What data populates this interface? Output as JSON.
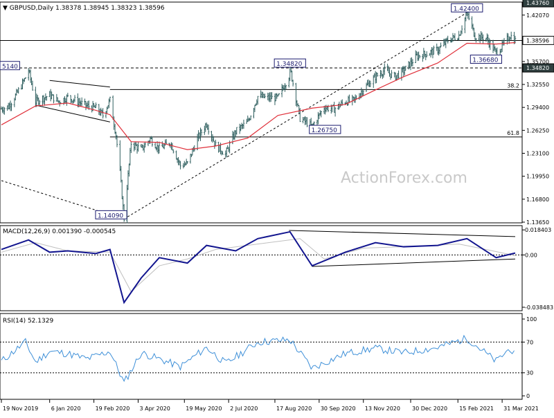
{
  "symbol_line": "GBPUSD,Daily  1.38378 1.38945 1.38323 1.38596",
  "watermark": "ActionForex.com",
  "colors": {
    "candles": "#2f5f5f",
    "ma": "#e0303a",
    "macd": "#12158f",
    "signal": "#bfbfbf",
    "rsi": "#3d8fd8",
    "guide": "#000000",
    "label_border": "#1a1a6e",
    "watermark": "#c9c9c9"
  },
  "chart_data": [
    {
      "type": "candlestick",
      "title": "GBPUSD,Daily",
      "ohlc_last": {
        "open": 1.38378,
        "high": 1.38945,
        "low": 1.38323,
        "close": 1.38596
      },
      "price_axis": {
        "ylim": [
          1.1365,
          1.4376
        ],
        "ticks": [
          "1.42070",
          "1.38596",
          "1.35700",
          "1.34820",
          "1.32550",
          "1.29400",
          "1.26250",
          "1.23100",
          "1.19950",
          "1.16800",
          "1.13650",
          "1.43760"
        ]
      },
      "date_axis": {
        "ticks": [
          "19 Nov 2019",
          "6 Jan 2020",
          "19 Feb 2020",
          "3 Apr 2020",
          "19 May 2020",
          "2 Jul 2020",
          "17 Aug 2020",
          "30 Sep 2020",
          "13 Nov 2020",
          "30 Dec 2020",
          "15 Feb 2021",
          "31 Mar 2021"
        ]
      },
      "series_close": [
        {
          "x": "2019-11-19",
          "y": 1.292
        },
        {
          "x": "2019-11-26",
          "y": 1.295
        },
        {
          "x": "2019-12-04",
          "y": 1.312
        },
        {
          "x": "2019-12-12",
          "y": 1.332
        },
        {
          "x": "2019-12-16",
          "y": 1.345
        },
        {
          "x": "2019-12-23",
          "y": 1.302
        },
        {
          "x": "2020-01-06",
          "y": 1.311
        },
        {
          "x": "2020-01-15",
          "y": 1.302
        },
        {
          "x": "2020-01-24",
          "y": 1.308
        },
        {
          "x": "2020-02-03",
          "y": 1.302
        },
        {
          "x": "2020-02-12",
          "y": 1.296
        },
        {
          "x": "2020-02-21",
          "y": 1.293
        },
        {
          "x": "2020-02-28",
          "y": 1.283
        },
        {
          "x": "2020-03-06",
          "y": 1.304
        },
        {
          "x": "2020-03-12",
          "y": 1.256
        },
        {
          "x": "2020-03-16",
          "y": 1.205
        },
        {
          "x": "2020-03-20",
          "y": 1.141
        },
        {
          "x": "2020-03-27",
          "y": 1.245
        },
        {
          "x": "2020-04-06",
          "y": 1.236
        },
        {
          "x": "2020-04-15",
          "y": 1.251
        },
        {
          "x": "2020-04-24",
          "y": 1.237
        },
        {
          "x": "2020-05-05",
          "y": 1.246
        },
        {
          "x": "2020-05-15",
          "y": 1.214
        },
        {
          "x": "2020-05-22",
          "y": 1.217
        },
        {
          "x": "2020-06-01",
          "y": 1.251
        },
        {
          "x": "2020-06-10",
          "y": 1.272
        },
        {
          "x": "2020-06-19",
          "y": 1.242
        },
        {
          "x": "2020-06-29",
          "y": 1.23
        },
        {
          "x": "2020-07-09",
          "y": 1.261
        },
        {
          "x": "2020-07-21",
          "y": 1.274
        },
        {
          "x": "2020-07-31",
          "y": 1.309
        },
        {
          "x": "2020-08-10",
          "y": 1.307
        },
        {
          "x": "2020-08-20",
          "y": 1.307
        },
        {
          "x": "2020-08-31",
          "y": 1.337
        },
        {
          "x": "2020-09-01",
          "y": 1.348
        },
        {
          "x": "2020-09-11",
          "y": 1.279
        },
        {
          "x": "2020-09-23",
          "y": 1.268
        },
        {
          "x": "2020-10-05",
          "y": 1.294
        },
        {
          "x": "2020-10-15",
          "y": 1.292
        },
        {
          "x": "2020-10-26",
          "y": 1.302
        },
        {
          "x": "2020-11-04",
          "y": 1.304
        },
        {
          "x": "2020-11-13",
          "y": 1.319
        },
        {
          "x": "2020-11-25",
          "y": 1.336
        },
        {
          "x": "2020-12-04",
          "y": 1.345
        },
        {
          "x": "2020-12-14",
          "y": 1.336
        },
        {
          "x": "2020-12-23",
          "y": 1.344
        },
        {
          "x": "2021-01-05",
          "y": 1.364
        },
        {
          "x": "2021-01-15",
          "y": 1.368
        },
        {
          "x": "2021-01-26",
          "y": 1.373
        },
        {
          "x": "2021-02-05",
          "y": 1.386
        },
        {
          "x": "2021-02-16",
          "y": 1.393
        },
        {
          "x": "2021-02-24",
          "y": 1.424
        },
        {
          "x": "2021-03-04",
          "y": 1.392
        },
        {
          "x": "2021-03-15",
          "y": 1.389
        },
        {
          "x": "2021-03-25",
          "y": 1.369
        },
        {
          "x": "2021-03-31",
          "y": 1.378
        },
        {
          "x": "2021-04-08",
          "y": 1.393
        },
        {
          "x": "2021-04-13",
          "y": 1.386
        }
      ],
      "moving_average": [
        {
          "x": "2019-11-19",
          "y": 1.27
        },
        {
          "x": "2019-12-23",
          "y": 1.296
        },
        {
          "x": "2020-01-24",
          "y": 1.3
        },
        {
          "x": "2020-02-21",
          "y": 1.29
        },
        {
          "x": "2020-03-06",
          "y": 1.284
        },
        {
          "x": "2020-03-27",
          "y": 1.247
        },
        {
          "x": "2020-04-24",
          "y": 1.246
        },
        {
          "x": "2020-05-22",
          "y": 1.236
        },
        {
          "x": "2020-06-19",
          "y": 1.241
        },
        {
          "x": "2020-07-21",
          "y": 1.252
        },
        {
          "x": "2020-08-20",
          "y": 1.283
        },
        {
          "x": "2020-09-23",
          "y": 1.293
        },
        {
          "x": "2020-10-26",
          "y": 1.298
        },
        {
          "x": "2020-11-25",
          "y": 1.318
        },
        {
          "x": "2020-12-23",
          "y": 1.336
        },
        {
          "x": "2021-01-26",
          "y": 1.355
        },
        {
          "x": "2021-02-24",
          "y": 1.382
        },
        {
          "x": "2021-03-25",
          "y": 1.381
        },
        {
          "x": "2021-04-13",
          "y": 1.383
        }
      ],
      "levels": [
        {
          "value": 1.3482,
          "style": "dashed"
        },
        {
          "value": 1.3858,
          "style": "solid"
        }
      ],
      "fib_labels": [
        {
          "label": "38.2",
          "value": 1.3185
        },
        {
          "label": "61.8",
          "value": 1.2535
        }
      ],
      "price_labels": [
        {
          "text": "1.42400",
          "x": "2021-02-24",
          "y": 1.424
        },
        {
          "text": "1.36680",
          "x": "2021-03-15",
          "y": 1.3668
        },
        {
          "text": "1.34820",
          "x": "2020-09-01",
          "y": 1.3482
        },
        {
          "text": "1.26750",
          "x": "2020-09-23",
          "y": 1.2675
        },
        {
          "text": "1.14090",
          "x": "2020-03-20",
          "y": 1.1409
        },
        {
          "text": "5140",
          "x": "2019-12-13",
          "y": 1.3514
        }
      ]
    },
    {
      "type": "line",
      "title": "MACD(12,26,9) 0.001390 -0.000545",
      "ylim": [
        -0.0385,
        0.0185
      ],
      "ticks": [
        "0.018403",
        "0.00",
        "-0.038483"
      ],
      "series": [
        {
          "values": [
            {
              "x": "2019-11-19",
              "y": 0.004
            },
            {
              "x": "2019-12-16",
              "y": 0.011
            },
            {
              "x": "2020-01-06",
              "y": 0.002
            },
            {
              "x": "2020-01-24",
              "y": 0.003
            },
            {
              "x": "2020-02-21",
              "y": 0.001
            },
            {
              "x": "2020-03-06",
              "y": 0.004
            },
            {
              "x": "2020-03-20",
              "y": -0.035
            },
            {
              "x": "2020-04-06",
              "y": -0.017
            },
            {
              "x": "2020-04-24",
              "y": -0.002
            },
            {
              "x": "2020-05-22",
              "y": -0.006
            },
            {
              "x": "2020-06-10",
              "y": 0.007
            },
            {
              "x": "2020-07-09",
              "y": 0.003
            },
            {
              "x": "2020-07-31",
              "y": 0.012
            },
            {
              "x": "2020-09-01",
              "y": 0.017
            },
            {
              "x": "2020-09-23",
              "y": -0.008
            },
            {
              "x": "2020-10-26",
              "y": 0.002
            },
            {
              "x": "2020-11-25",
              "y": 0.009
            },
            {
              "x": "2020-12-23",
              "y": 0.006
            },
            {
              "x": "2021-01-26",
              "y": 0.007
            },
            {
              "x": "2021-02-24",
              "y": 0.012
            },
            {
              "x": "2021-03-25",
              "y": -0.002
            },
            {
              "x": "2021-04-13",
              "y": 0.0014
            }
          ]
        },
        {
          "values": [
            {
              "x": "2019-11-19",
              "y": 0.002
            },
            {
              "x": "2019-12-23",
              "y": 0.009
            },
            {
              "x": "2020-01-24",
              "y": 0.003
            },
            {
              "x": "2020-03-06",
              "y": 0.002
            },
            {
              "x": "2020-03-27",
              "y": -0.027
            },
            {
              "x": "2020-04-24",
              "y": -0.008
            },
            {
              "x": "2020-05-22",
              "y": -0.003
            },
            {
              "x": "2020-06-19",
              "y": 0.004
            },
            {
              "x": "2020-07-31",
              "y": 0.008
            },
            {
              "x": "2020-09-11",
              "y": 0.012
            },
            {
              "x": "2020-10-05",
              "y": -0.003
            },
            {
              "x": "2020-11-13",
              "y": 0.005
            },
            {
              "x": "2020-12-23",
              "y": 0.006
            },
            {
              "x": "2021-02-16",
              "y": 0.008
            },
            {
              "x": "2021-03-15",
              "y": 0.004
            },
            {
              "x": "2021-04-13",
              "y": -0.0005
            }
          ]
        }
      ]
    },
    {
      "type": "line",
      "title": "RSI(14) 52.1329",
      "ylim": [
        0,
        100
      ],
      "ticks": [
        "100",
        "70",
        "30",
        "0"
      ],
      "series": [
        {
          "values": [
            {
              "x": "2019-11-19",
              "y": 45
            },
            {
              "x": "2019-12-13",
              "y": 70
            },
            {
              "x": "2019-12-23",
              "y": 44
            },
            {
              "x": "2020-01-06",
              "y": 58
            },
            {
              "x": "2020-01-24",
              "y": 55
            },
            {
              "x": "2020-02-12",
              "y": 48
            },
            {
              "x": "2020-03-06",
              "y": 58
            },
            {
              "x": "2020-03-20",
              "y": 17
            },
            {
              "x": "2020-04-06",
              "y": 56
            },
            {
              "x": "2020-04-24",
              "y": 48
            },
            {
              "x": "2020-05-15",
              "y": 38
            },
            {
              "x": "2020-06-10",
              "y": 63
            },
            {
              "x": "2020-06-29",
              "y": 42
            },
            {
              "x": "2020-07-31",
              "y": 70
            },
            {
              "x": "2020-09-01",
              "y": 73
            },
            {
              "x": "2020-09-23",
              "y": 36
            },
            {
              "x": "2020-10-26",
              "y": 55
            },
            {
              "x": "2020-11-25",
              "y": 62
            },
            {
              "x": "2020-12-23",
              "y": 56
            },
            {
              "x": "2021-01-26",
              "y": 63
            },
            {
              "x": "2021-02-24",
              "y": 75
            },
            {
              "x": "2021-03-25",
              "y": 45
            },
            {
              "x": "2021-04-08",
              "y": 62
            },
            {
              "x": "2021-04-13",
              "y": 52
            }
          ]
        }
      ]
    }
  ]
}
